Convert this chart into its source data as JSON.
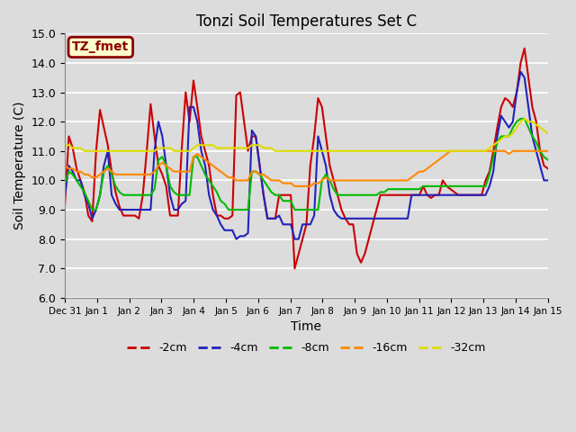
{
  "title": "Tonzi Soil Temperatures Set C",
  "xlabel": "Time",
  "ylabel": "Soil Temperature (C)",
  "ylim": [
    6.0,
    15.0
  ],
  "yticks": [
    6.0,
    7.0,
    8.0,
    9.0,
    10.0,
    11.0,
    12.0,
    13.0,
    14.0,
    15.0
  ],
  "xtick_labels": [
    "Dec 31",
    "Jan 1",
    "Jan 2",
    "Jan 3",
    "Jan 4",
    "Jan 5",
    "Jan 6",
    "Jan 7",
    "Jan 8",
    "Jan 9",
    "Jan 10",
    "Jan 11",
    "Jan 12",
    "Jan 13",
    "Jan 14",
    "Jan 15"
  ],
  "annotation_label": "TZ_fmet",
  "annotation_bbox_facecolor": "#FFFFCC",
  "annotation_bbox_edgecolor": "#8B0000",
  "colors": {
    "-2cm": "#CC0000",
    "-4cm": "#2222BB",
    "-8cm": "#00BB00",
    "-16cm": "#FF8800",
    "-32cm": "#DDDD00"
  },
  "line_width": 1.5,
  "background_color": "#DCDCDC",
  "plot_bg_color": "#DCDCDC",
  "grid_color": "#FFFFFF",
  "grid_lw": 1.2,
  "series_2cm": [
    9.2,
    11.5,
    11.1,
    10.4,
    10.0,
    9.6,
    8.8,
    8.6,
    11.0,
    12.4,
    11.8,
    11.2,
    10.3,
    9.6,
    9.1,
    8.8,
    8.8,
    8.8,
    8.8,
    8.7,
    9.5,
    11.0,
    12.6,
    11.5,
    10.5,
    10.2,
    9.8,
    8.8,
    8.8,
    8.8,
    11.1,
    13.0,
    12.0,
    13.4,
    12.5,
    11.5,
    11.0,
    10.5,
    9.5,
    8.8,
    8.8,
    8.7,
    8.7,
    8.8,
    12.9,
    13.0,
    12.0,
    11.0,
    11.5,
    11.5,
    10.5,
    9.5,
    8.7,
    8.7,
    8.7,
    9.5,
    9.5,
    9.5,
    9.5,
    7.0,
    7.5,
    8.0,
    8.5,
    10.5,
    11.5,
    12.8,
    12.5,
    11.5,
    10.5,
    10.0,
    9.5,
    9.0,
    8.7,
    8.5,
    8.5,
    7.5,
    7.2,
    7.5,
    8.0,
    8.5,
    9.0,
    9.5,
    9.5,
    9.5,
    9.5,
    9.5,
    9.5,
    9.5,
    9.5,
    9.5,
    9.5,
    9.5,
    9.8,
    9.5,
    9.4,
    9.5,
    9.5,
    10.0,
    9.8,
    9.7,
    9.6,
    9.5,
    9.5,
    9.5,
    9.5,
    9.5,
    9.5,
    9.5,
    10.0,
    10.3,
    11.0,
    11.8,
    12.5,
    12.8,
    12.7,
    12.5,
    13.0,
    14.0,
    14.5,
    13.5,
    12.5,
    12.0,
    11.0,
    10.5,
    10.4
  ],
  "series_4cm": [
    9.5,
    10.5,
    10.3,
    10.0,
    10.0,
    9.5,
    9.2,
    8.7,
    9.0,
    9.5,
    10.5,
    11.0,
    9.5,
    9.2,
    9.0,
    9.0,
    9.0,
    9.0,
    9.0,
    9.0,
    9.0,
    9.0,
    9.0,
    11.0,
    12.0,
    11.5,
    10.5,
    9.5,
    9.0,
    9.0,
    9.2,
    9.3,
    12.5,
    12.5,
    12.0,
    11.0,
    10.5,
    9.5,
    9.0,
    8.8,
    8.5,
    8.3,
    8.3,
    8.3,
    8.0,
    8.1,
    8.1,
    8.2,
    11.7,
    11.5,
    10.5,
    9.5,
    8.7,
    8.7,
    8.7,
    8.8,
    8.5,
    8.5,
    8.5,
    8.0,
    8.0,
    8.5,
    8.5,
    8.5,
    8.8,
    11.5,
    11.0,
    10.5,
    9.5,
    9.0,
    8.8,
    8.7,
    8.7,
    8.7,
    8.7,
    8.7,
    8.7,
    8.7,
    8.7,
    8.7,
    8.7,
    8.7,
    8.7,
    8.7,
    8.7,
    8.7,
    8.7,
    8.7,
    8.7,
    9.5,
    9.5,
    9.5,
    9.5,
    9.5,
    9.5,
    9.5,
    9.5,
    9.5,
    9.5,
    9.5,
    9.5,
    9.5,
    9.5,
    9.5,
    9.5,
    9.5,
    9.5,
    9.5,
    9.5,
    9.8,
    10.3,
    11.5,
    12.2,
    12.0,
    11.8,
    12.0,
    13.0,
    13.7,
    13.5,
    12.5,
    11.5,
    11.0,
    10.5,
    10.0,
    10.0
  ],
  "series_8cm": [
    9.9,
    10.3,
    10.2,
    10.0,
    9.8,
    9.6,
    9.3,
    9.0,
    9.0,
    9.5,
    10.3,
    10.5,
    10.2,
    9.8,
    9.6,
    9.5,
    9.5,
    9.5,
    9.5,
    9.5,
    9.5,
    9.5,
    9.5,
    9.7,
    10.7,
    10.8,
    10.5,
    9.8,
    9.6,
    9.5,
    9.5,
    9.5,
    9.5,
    10.8,
    10.8,
    10.5,
    10.2,
    10.0,
    9.8,
    9.6,
    9.3,
    9.2,
    9.0,
    9.0,
    9.0,
    9.0,
    9.0,
    9.0,
    10.3,
    10.3,
    10.2,
    10.0,
    9.8,
    9.6,
    9.5,
    9.5,
    9.3,
    9.3,
    9.3,
    9.0,
    9.0,
    9.0,
    9.0,
    9.0,
    9.0,
    9.0,
    10.0,
    10.2,
    10.0,
    9.7,
    9.5,
    9.5,
    9.5,
    9.5,
    9.5,
    9.5,
    9.5,
    9.5,
    9.5,
    9.5,
    9.5,
    9.6,
    9.6,
    9.7,
    9.7,
    9.7,
    9.7,
    9.7,
    9.7,
    9.7,
    9.7,
    9.7,
    9.8,
    9.8,
    9.8,
    9.8,
    9.8,
    9.8,
    9.8,
    9.8,
    9.8,
    9.8,
    9.8,
    9.8,
    9.8,
    9.8,
    9.8,
    9.8,
    9.8,
    10.2,
    10.8,
    11.3,
    11.5,
    11.5,
    11.5,
    11.8,
    12.0,
    12.1,
    12.1,
    11.8,
    11.5,
    11.3,
    11.0,
    10.8,
    10.7
  ],
  "series_16cm": [
    10.5,
    10.4,
    10.4,
    10.3,
    10.3,
    10.2,
    10.2,
    10.1,
    10.1,
    10.2,
    10.3,
    10.4,
    10.3,
    10.2,
    10.2,
    10.2,
    10.2,
    10.2,
    10.2,
    10.2,
    10.2,
    10.2,
    10.2,
    10.3,
    10.5,
    10.6,
    10.5,
    10.4,
    10.3,
    10.3,
    10.3,
    10.3,
    10.3,
    10.8,
    10.9,
    10.8,
    10.7,
    10.6,
    10.5,
    10.4,
    10.3,
    10.2,
    10.1,
    10.1,
    10.0,
    10.0,
    10.0,
    10.0,
    10.3,
    10.3,
    10.2,
    10.2,
    10.1,
    10.0,
    10.0,
    10.0,
    9.9,
    9.9,
    9.9,
    9.8,
    9.8,
    9.8,
    9.8,
    9.8,
    9.9,
    9.9,
    10.0,
    10.1,
    10.0,
    10.0,
    10.0,
    10.0,
    10.0,
    10.0,
    10.0,
    10.0,
    10.0,
    10.0,
    10.0,
    10.0,
    10.0,
    10.0,
    10.0,
    10.0,
    10.0,
    10.0,
    10.0,
    10.0,
    10.0,
    10.1,
    10.2,
    10.3,
    10.3,
    10.4,
    10.5,
    10.6,
    10.7,
    10.8,
    10.9,
    11.0,
    11.0,
    11.0,
    11.0,
    11.0,
    11.0,
    11.0,
    11.0,
    11.0,
    11.0,
    11.0,
    11.0,
    11.0,
    11.0,
    11.0,
    10.9,
    11.0,
    11.0,
    11.0,
    11.0,
    11.0,
    11.0,
    11.0,
    11.0,
    11.0,
    11.0
  ],
  "series_32cm": [
    11.2,
    11.2,
    11.1,
    11.1,
    11.1,
    11.0,
    11.0,
    11.0,
    11.0,
    11.0,
    11.0,
    11.0,
    11.0,
    11.0,
    11.0,
    11.0,
    11.0,
    11.0,
    11.0,
    11.0,
    11.0,
    11.0,
    11.0,
    11.0,
    11.1,
    11.1,
    11.1,
    11.1,
    11.0,
    11.0,
    11.0,
    11.0,
    11.0,
    11.1,
    11.2,
    11.2,
    11.2,
    11.2,
    11.2,
    11.1,
    11.1,
    11.1,
    11.1,
    11.1,
    11.1,
    11.1,
    11.1,
    11.1,
    11.2,
    11.2,
    11.2,
    11.1,
    11.1,
    11.1,
    11.0,
    11.0,
    11.0,
    11.0,
    11.0,
    11.0,
    11.0,
    11.0,
    11.0,
    11.0,
    11.0,
    11.0,
    11.0,
    11.0,
    11.0,
    11.0,
    11.0,
    11.0,
    11.0,
    11.0,
    11.0,
    11.0,
    11.0,
    11.0,
    11.0,
    11.0,
    11.0,
    11.0,
    11.0,
    11.0,
    11.0,
    11.0,
    11.0,
    11.0,
    11.0,
    11.0,
    11.0,
    11.0,
    11.0,
    11.0,
    11.0,
    11.0,
    11.0,
    11.0,
    11.0,
    11.0,
    11.0,
    11.0,
    11.0,
    11.0,
    11.0,
    11.0,
    11.0,
    11.0,
    11.0,
    11.1,
    11.2,
    11.3,
    11.4,
    11.5,
    11.5,
    11.6,
    11.8,
    12.0,
    12.1,
    12.0,
    12.0,
    11.9,
    11.8,
    11.7,
    11.6
  ]
}
